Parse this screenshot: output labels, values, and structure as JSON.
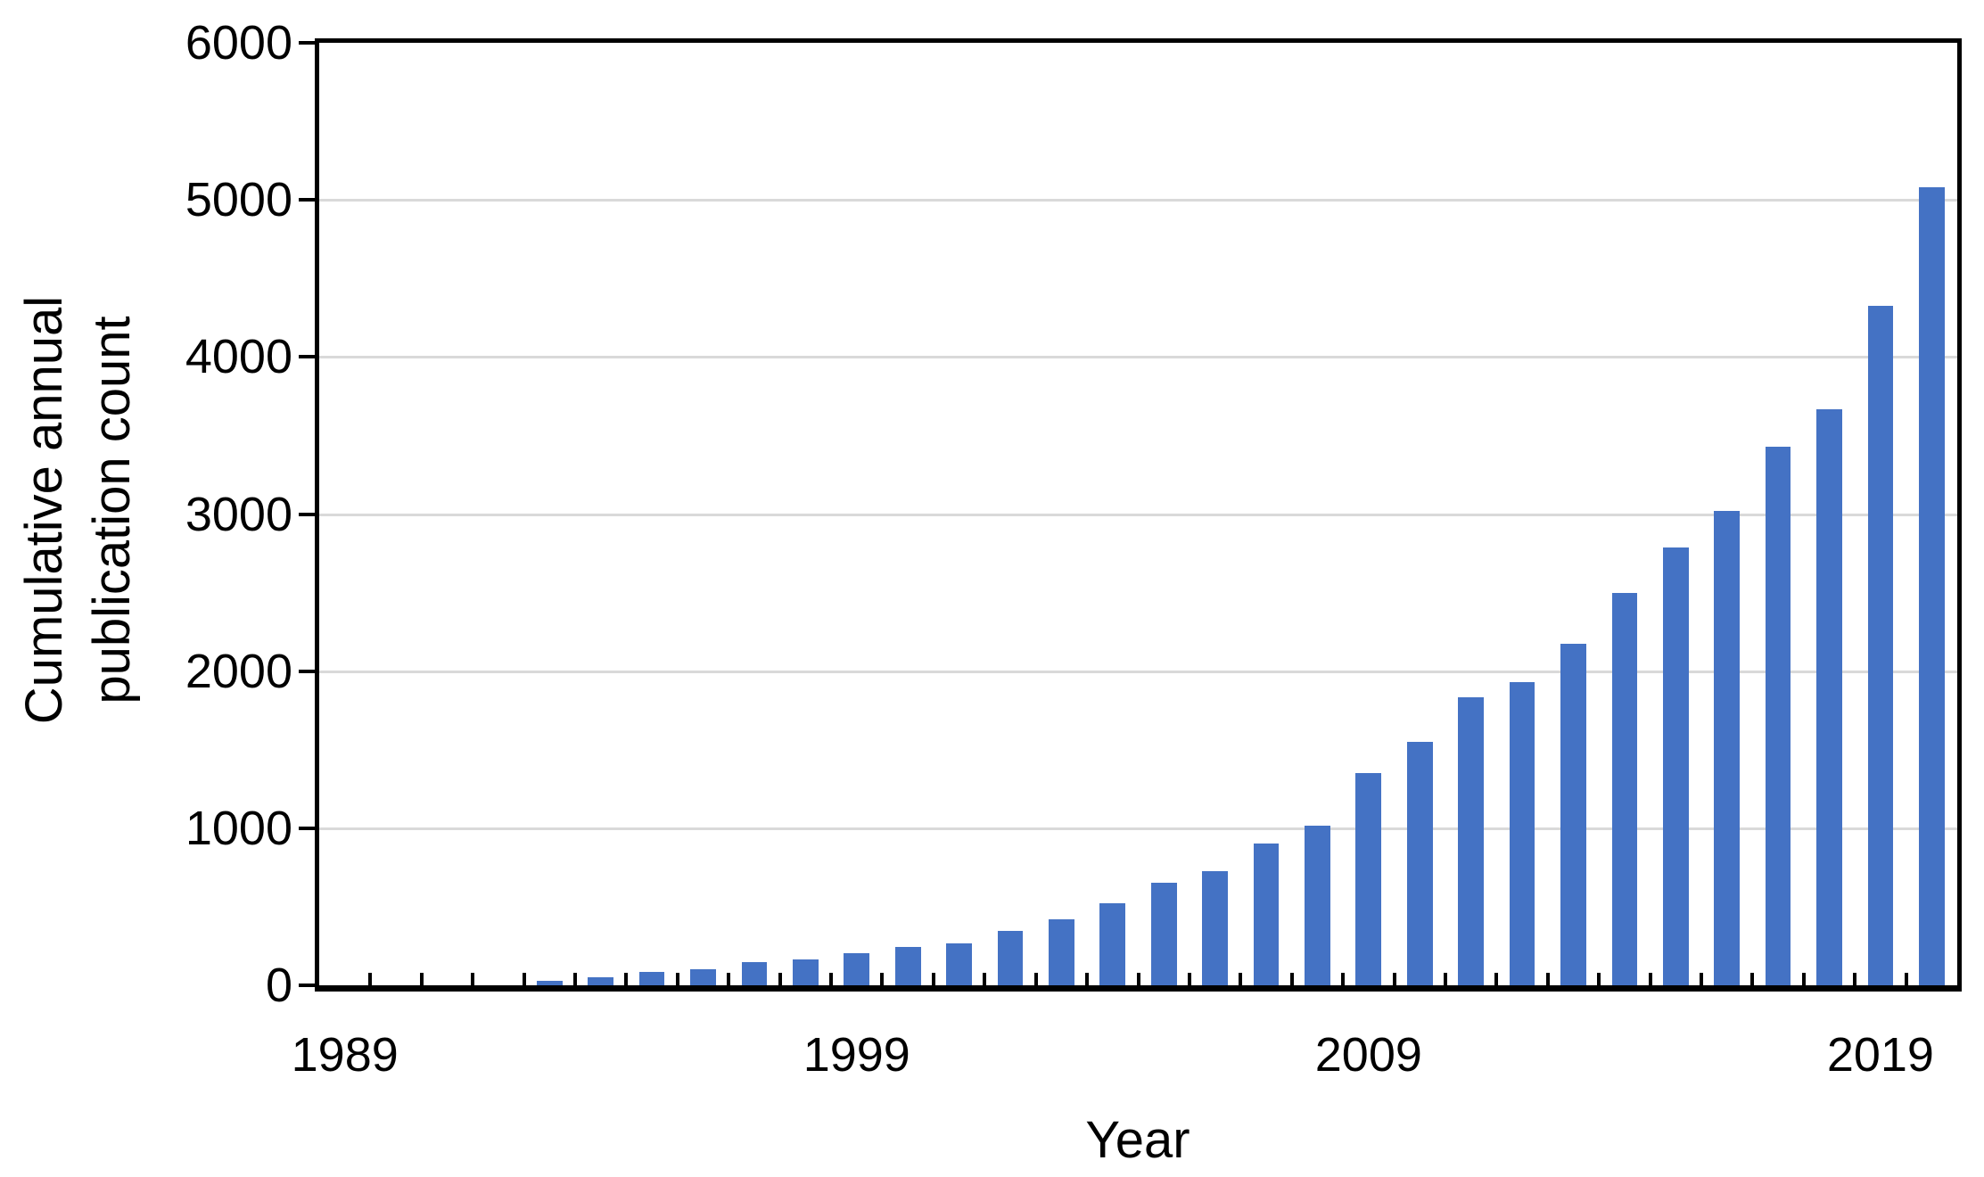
{
  "chart_data": {
    "type": "bar",
    "title": "",
    "xlabel": "Year",
    "ylabel": "Cumulative annual publication count",
    "ylabel_lines": [
      "Cumulative annual",
      "publication count"
    ],
    "ylim": [
      0,
      6000
    ],
    "y_ticks": [
      0,
      1000,
      2000,
      3000,
      4000,
      5000,
      6000
    ],
    "x_tick_labels": [
      {
        "category_index": 0,
        "label": "1989"
      },
      {
        "category_index": 10,
        "label": "1999"
      },
      {
        "category_index": 20,
        "label": "2009"
      },
      {
        "category_index": 30,
        "label": "2019"
      }
    ],
    "grid": "horizontal-light-gray",
    "legend": "none",
    "colors": {
      "bar": "#4472C4",
      "gridline": "#D9D9D9",
      "axis": "#000000",
      "background": "#FFFFFF"
    },
    "categories": [
      1989,
      1990,
      1991,
      1992,
      1993,
      1994,
      1995,
      1996,
      1997,
      1998,
      1999,
      2000,
      2001,
      2002,
      2003,
      2004,
      2005,
      2006,
      2007,
      2008,
      2009,
      2010,
      2011,
      2012,
      2013,
      2014,
      2015,
      2016,
      2017,
      2018,
      2019,
      2020
    ],
    "values": [
      0,
      0,
      0,
      0,
      30,
      50,
      85,
      100,
      150,
      165,
      205,
      245,
      265,
      345,
      420,
      525,
      655,
      725,
      905,
      1015,
      1350,
      1550,
      1835,
      1930,
      2175,
      2495,
      2785,
      3020,
      3430,
      3665,
      4325,
      5080
    ]
  }
}
